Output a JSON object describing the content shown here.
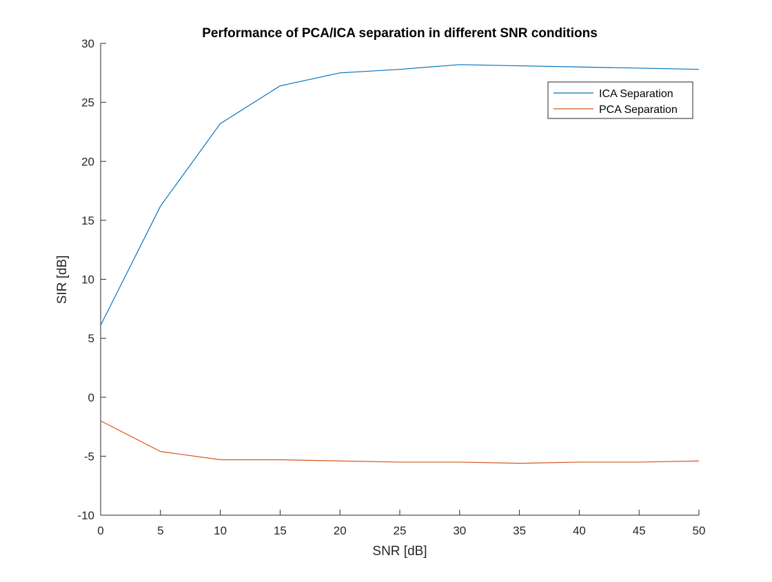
{
  "chart_data": {
    "type": "line",
    "title": "Performance of PCA/ICA separation in different SNR conditions",
    "xlabel": "SNR [dB]",
    "ylabel": "SIR [dB]",
    "xlim": [
      0,
      50
    ],
    "ylim": [
      -10,
      30
    ],
    "xticks": [
      0,
      5,
      10,
      15,
      20,
      25,
      30,
      35,
      40,
      45,
      50
    ],
    "yticks": [
      -10,
      -5,
      0,
      5,
      10,
      15,
      20,
      25,
      30
    ],
    "grid": false,
    "legend_position": "top-right",
    "x": [
      0,
      5,
      10,
      15,
      20,
      25,
      30,
      35,
      40,
      45,
      50
    ],
    "series": [
      {
        "name": "ICA Separation",
        "color": "#0072BD",
        "values": [
          6.1,
          16.2,
          23.2,
          26.4,
          27.5,
          27.8,
          28.2,
          28.1,
          28.0,
          27.9,
          27.8
        ]
      },
      {
        "name": "PCA Separation",
        "color": "#D95319",
        "values": [
          -2.0,
          -4.6,
          -5.3,
          -5.3,
          -5.4,
          -5.5,
          -5.5,
          -5.6,
          -5.5,
          -5.5,
          -5.4
        ]
      }
    ]
  }
}
